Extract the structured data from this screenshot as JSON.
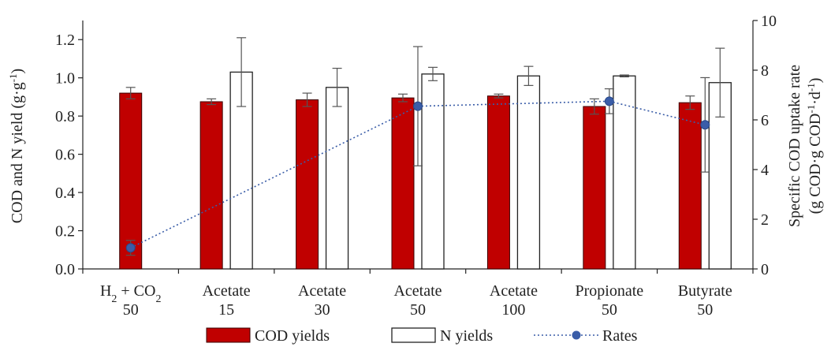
{
  "chart_data": {
    "type": "bar",
    "title": "",
    "categories": [
      {
        "line1": "H",
        "sub": "2",
        "mid": " + CO",
        "sub2": "2",
        "line2": "50"
      },
      {
        "line1": "Acetate",
        "line2": "15"
      },
      {
        "line1": "Acetate",
        "line2": "30"
      },
      {
        "line1": "Acetate",
        "line2": "50"
      },
      {
        "line1": "Acetate",
        "line2": "100"
      },
      {
        "line1": "Propionate",
        "line2": "50"
      },
      {
        "line1": "Butyrate",
        "line2": "50"
      }
    ],
    "left_axis": {
      "label_main": "COD and N yield (g·g",
      "label_sup": "-1",
      "label_end": ")",
      "ylim": [
        0,
        1.3
      ],
      "ticks": [
        "0.0",
        "0.2",
        "0.4",
        "0.6",
        "0.8",
        "1.0",
        "1.2"
      ]
    },
    "right_axis": {
      "label_line1": "Specific COD uptake rate",
      "label_line2_main": "(g COD·g COD",
      "label_line2_sup1": "-1",
      "label_line2_mid": "·d",
      "label_line2_sup2": "-1",
      "label_line2_end": ")",
      "ylim": [
        0,
        10
      ],
      "ticks": [
        "0",
        "2",
        "4",
        "6",
        "8",
        "10"
      ]
    },
    "series": [
      {
        "name": "COD yields",
        "kind": "bar",
        "color": "#c00000",
        "values": [
          0.92,
          0.875,
          0.885,
          0.895,
          0.905,
          0.85,
          0.87
        ],
        "errors": [
          0.03,
          0.015,
          0.035,
          0.02,
          0.01,
          0.04,
          0.035
        ]
      },
      {
        "name": "N yields",
        "kind": "bar",
        "color": "#ffffff",
        "values": [
          null,
          1.03,
          0.95,
          1.02,
          1.01,
          1.01,
          0.975
        ],
        "errors": [
          null,
          0.18,
          0.1,
          0.035,
          0.05,
          0.005,
          0.18
        ]
      },
      {
        "name": "Rates",
        "kind": "line",
        "axis": "right",
        "color": "#3a5da8",
        "values": [
          0.85,
          null,
          null,
          6.55,
          null,
          6.75,
          5.8
        ],
        "errors": [
          0.3,
          null,
          null,
          2.4,
          null,
          0.5,
          1.9
        ]
      }
    ],
    "legend": {
      "position": "bottom",
      "items": [
        "COD yields",
        "N yields",
        "Rates"
      ]
    },
    "grid": false
  }
}
